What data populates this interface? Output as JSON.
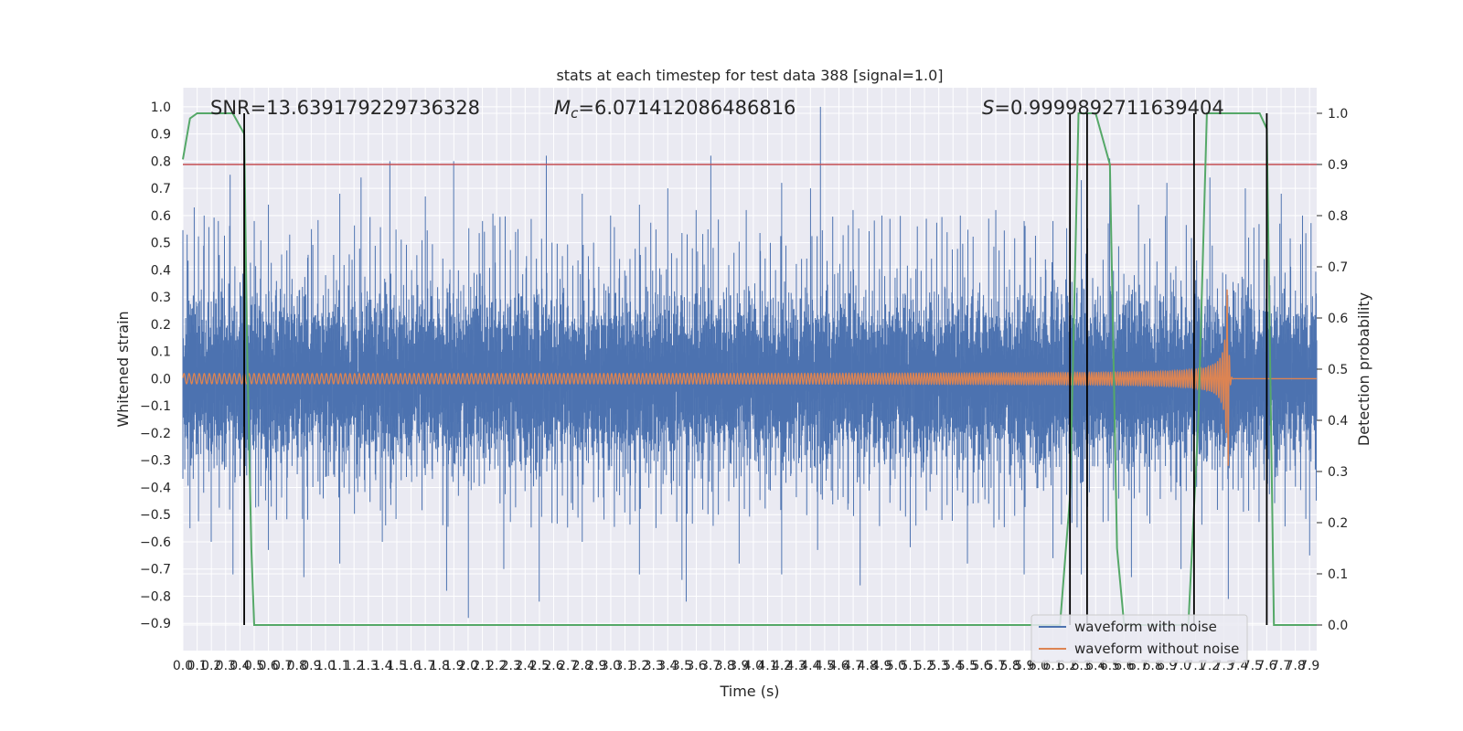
{
  "chart_data": {
    "type": "line",
    "title": "stats at each timestep for test data 388 [signal=1.0]",
    "xlabel": "Time (s)",
    "ylabel": "Whitened strain",
    "y2label": "Detection probability",
    "xlim": [
      0.0,
      7.95
    ],
    "ylim": [
      -1.0,
      1.07
    ],
    "y2lim": [
      -0.05,
      1.05
    ],
    "x_ticks": [
      0.0,
      0.1,
      0.2,
      0.3,
      0.4,
      0.5,
      0.6,
      0.7,
      0.8,
      0.9,
      1.0,
      1.1,
      1.2,
      1.3,
      1.4,
      1.5,
      1.6,
      1.7,
      1.8,
      1.9,
      2.0,
      2.1,
      2.2,
      2.3,
      2.4,
      2.5,
      2.6,
      2.7,
      2.8,
      2.9,
      3.0,
      3.1,
      3.2,
      3.3,
      3.4,
      3.5,
      3.6,
      3.7,
      3.8,
      3.9,
      4.0,
      4.1,
      4.2,
      4.3,
      4.4,
      4.5,
      4.6,
      4.7,
      4.8,
      4.9,
      5.0,
      5.1,
      5.2,
      5.3,
      5.4,
      5.5,
      5.6,
      5.7,
      5.8,
      5.9,
      6.0,
      6.1,
      6.2,
      6.3,
      6.4,
      6.5,
      6.6,
      6.7,
      6.8,
      6.9,
      7.0,
      7.1,
      7.2,
      7.3,
      7.4,
      7.5,
      7.6,
      7.7,
      7.8,
      7.9
    ],
    "y_ticks": [
      -0.9,
      -0.8,
      -0.7,
      -0.6,
      -0.5,
      -0.4,
      -0.3,
      -0.2,
      -0.1,
      0.0,
      0.1,
      0.2,
      0.3,
      0.4,
      0.5,
      0.6,
      0.7,
      0.8,
      0.9,
      1.0
    ],
    "y2_ticks": [
      0.0,
      0.1,
      0.2,
      0.3,
      0.4,
      0.5,
      0.6,
      0.7,
      0.8,
      0.9,
      1.0
    ],
    "grid": true,
    "legend_position": "lower-right",
    "annotations": {
      "snr": "SNR=13.639179229736328",
      "mc_symbol": "M",
      "mc_subscript": "c",
      "mc_value": "=6.071412086486816",
      "s_symbol": "S",
      "s_value": "=0.9999892711639404"
    },
    "threshold_line": {
      "axis": "y2",
      "value": 0.9,
      "color": "#c44e52"
    },
    "vertical_lines": {
      "x": [
        0.43,
        6.22,
        6.34,
        7.09,
        7.6
      ],
      "color": "#000000"
    },
    "series": [
      {
        "name": "waveform with noise",
        "axis": "y",
        "color": "#4c72b0",
        "envelope": {
          "typical_upper": 0.3,
          "typical_lower": -0.3
        },
        "peaks": [
          [
            0.03,
            0.53
          ],
          [
            0.08,
            0.63
          ],
          [
            0.15,
            0.6
          ],
          [
            0.25,
            0.58
          ],
          [
            0.33,
            0.75
          ],
          [
            0.5,
            0.58
          ],
          [
            0.6,
            0.64
          ],
          [
            0.75,
            0.53
          ],
          [
            0.9,
            0.55
          ],
          [
            1.1,
            0.68
          ],
          [
            1.25,
            0.74
          ],
          [
            1.45,
            0.8
          ],
          [
            1.7,
            0.67
          ],
          [
            1.9,
            0.8
          ],
          [
            2.1,
            0.58
          ],
          [
            2.35,
            0.55
          ],
          [
            2.55,
            0.82
          ],
          [
            2.8,
            0.68
          ],
          [
            3.0,
            0.6
          ],
          [
            3.2,
            0.64
          ],
          [
            3.4,
            0.7
          ],
          [
            3.6,
            0.62
          ],
          [
            3.7,
            0.82
          ],
          [
            3.95,
            0.62
          ],
          [
            4.2,
            0.72
          ],
          [
            4.4,
            0.7
          ],
          [
            4.47,
            1.0
          ],
          [
            4.7,
            0.62
          ],
          [
            4.9,
            0.6
          ],
          [
            5.15,
            0.56
          ],
          [
            5.45,
            0.6
          ],
          [
            5.7,
            0.62
          ],
          [
            5.9,
            0.58
          ],
          [
            6.1,
            0.58
          ],
          [
            6.3,
            0.73
          ],
          [
            6.5,
            0.81
          ],
          [
            6.7,
            0.64
          ],
          [
            6.9,
            0.72
          ],
          [
            7.2,
            0.74
          ],
          [
            7.45,
            0.7
          ],
          [
            7.7,
            0.68
          ],
          [
            7.85,
            0.6
          ]
        ],
        "troughs": [
          [
            0.05,
            -0.55
          ],
          [
            0.2,
            -0.6
          ],
          [
            0.35,
            -0.72
          ],
          [
            0.6,
            -0.63
          ],
          [
            0.85,
            -0.73
          ],
          [
            1.1,
            -0.68
          ],
          [
            1.4,
            -0.6
          ],
          [
            1.85,
            -0.78
          ],
          [
            2.0,
            -0.88
          ],
          [
            2.25,
            -0.7
          ],
          [
            2.5,
            -0.82
          ],
          [
            2.8,
            -0.6
          ],
          [
            3.2,
            -0.72
          ],
          [
            3.5,
            -0.74
          ],
          [
            3.53,
            -0.82
          ],
          [
            3.9,
            -0.68
          ],
          [
            4.2,
            -0.72
          ],
          [
            4.45,
            -0.63
          ],
          [
            4.75,
            -0.76
          ],
          [
            5.1,
            -0.62
          ],
          [
            5.5,
            -0.68
          ],
          [
            5.9,
            -0.72
          ],
          [
            6.1,
            -0.66
          ],
          [
            6.3,
            -0.72
          ],
          [
            6.65,
            -0.73
          ],
          [
            7.0,
            -0.7
          ],
          [
            7.33,
            -0.81
          ],
          [
            7.6,
            -0.7
          ],
          [
            7.9,
            -0.65
          ]
        ]
      },
      {
        "name": "waveform without noise",
        "axis": "y",
        "color": "#dd8452",
        "model": "inspiral chirp, amplitude rising from about 0.02 to 0.33 at merger near 7.33 s, ringdown to 0 by 7.36 s"
      },
      {
        "name": "detection probability",
        "axis": "y2",
        "color": "#55a868",
        "x": [
          0.0,
          0.05,
          0.1,
          0.2,
          0.35,
          0.43,
          0.45,
          0.48,
          0.5,
          6.15,
          6.22,
          6.28,
          6.4,
          6.5,
          6.55,
          6.6,
          7.05,
          7.12,
          7.18,
          7.25,
          7.55,
          7.6,
          7.65,
          7.95
        ],
        "y": [
          0.91,
          0.99,
          1.0,
          1.0,
          1.0,
          0.96,
          0.55,
          0.15,
          0.0,
          0.0,
          0.25,
          1.0,
          1.0,
          0.9,
          0.15,
          0.0,
          0.0,
          0.4,
          1.0,
          1.0,
          1.0,
          0.97,
          0.0,
          0.0
        ]
      }
    ]
  }
}
